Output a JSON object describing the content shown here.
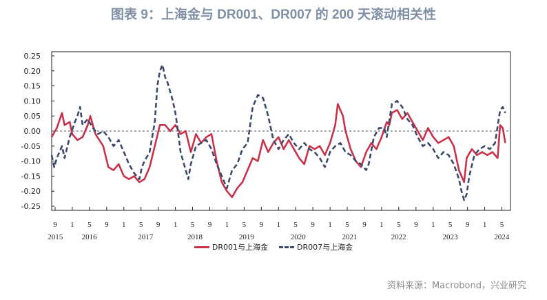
{
  "title": "图表 9：上海金与 DR001、DR007 的 200 天滚动相关性",
  "source": "资料来源：Macrobond，兴业研究",
  "colors": {
    "series1": "#c8334a",
    "series2": "#3b4a6b",
    "zero_line": "#555555"
  },
  "chart_data": {
    "type": "line",
    "ylim": [
      -0.25,
      0.25
    ],
    "yticks": [
      "0.25",
      "0.20",
      "0.15",
      "0.10",
      "0.05",
      "0.00",
      "-0.05",
      "-0.10",
      "-0.15",
      "-0.20",
      "-0.25"
    ],
    "xlim": [
      2015.6,
      2024.5
    ],
    "month_ticks": [
      {
        "t": 2015.667,
        "label": "9"
      },
      {
        "t": 2016.0,
        "label": "1"
      },
      {
        "t": 2016.333,
        "label": "5"
      },
      {
        "t": 2016.667,
        "label": "9"
      },
      {
        "t": 2017.0,
        "label": "1"
      },
      {
        "t": 2017.333,
        "label": "5"
      },
      {
        "t": 2017.667,
        "label": "9"
      },
      {
        "t": 2018.0,
        "label": "1"
      },
      {
        "t": 2018.333,
        "label": "5"
      },
      {
        "t": 2018.667,
        "label": "9"
      },
      {
        "t": 2019.0,
        "label": "1"
      },
      {
        "t": 2019.333,
        "label": "5"
      },
      {
        "t": 2019.667,
        "label": "9"
      },
      {
        "t": 2020.0,
        "label": "1"
      },
      {
        "t": 2020.333,
        "label": "5"
      },
      {
        "t": 2020.667,
        "label": "9"
      },
      {
        "t": 2021.0,
        "label": "1"
      },
      {
        "t": 2021.333,
        "label": "5"
      },
      {
        "t": 2021.667,
        "label": "9"
      },
      {
        "t": 2022.0,
        "label": "1"
      },
      {
        "t": 2022.333,
        "label": "5"
      },
      {
        "t": 2022.667,
        "label": "9"
      },
      {
        "t": 2023.0,
        "label": "1"
      },
      {
        "t": 2023.333,
        "label": "5"
      },
      {
        "t": 2023.667,
        "label": "9"
      },
      {
        "t": 2024.0,
        "label": "1"
      },
      {
        "t": 2024.333,
        "label": "5"
      }
    ],
    "year_labels": [
      {
        "t": 2015.67,
        "label": "2015"
      },
      {
        "t": 2016.33,
        "label": "2016"
      },
      {
        "t": 2017.42,
        "label": "2017"
      },
      {
        "t": 2018.38,
        "label": "2018"
      },
      {
        "t": 2019.38,
        "label": "2019"
      },
      {
        "t": 2020.38,
        "label": "2020"
      },
      {
        "t": 2021.38,
        "label": "2021"
      },
      {
        "t": 2022.33,
        "label": "2022"
      },
      {
        "t": 2023.33,
        "label": "2023"
      },
      {
        "t": 2024.33,
        "label": "2024"
      }
    ],
    "series": [
      {
        "name": "DR001与上海金",
        "style": "solid",
        "points": [
          [
            2015.6,
            -0.02
          ],
          [
            2015.7,
            0.01
          ],
          [
            2015.8,
            0.06
          ],
          [
            2015.85,
            0.02
          ],
          [
            2015.95,
            0.03
          ],
          [
            2016.0,
            -0.01
          ],
          [
            2016.1,
            -0.03
          ],
          [
            2016.2,
            -0.02
          ],
          [
            2016.3,
            0.02
          ],
          [
            2016.35,
            0.05
          ],
          [
            2016.45,
            -0.01
          ],
          [
            2016.6,
            -0.05
          ],
          [
            2016.7,
            -0.12
          ],
          [
            2016.8,
            -0.13
          ],
          [
            2016.9,
            -0.11
          ],
          [
            2017.0,
            -0.15
          ],
          [
            2017.1,
            -0.16
          ],
          [
            2017.2,
            -0.15
          ],
          [
            2017.3,
            -0.17
          ],
          [
            2017.4,
            -0.16
          ],
          [
            2017.5,
            -0.12
          ],
          [
            2017.6,
            -0.05
          ],
          [
            2017.7,
            0.02
          ],
          [
            2017.8,
            0.02
          ],
          [
            2017.9,
            0.0
          ],
          [
            2018.0,
            0.02
          ],
          [
            2018.1,
            -0.01
          ],
          [
            2018.2,
            0.0
          ],
          [
            2018.3,
            -0.07
          ],
          [
            2018.4,
            -0.01
          ],
          [
            2018.5,
            -0.04
          ],
          [
            2018.6,
            -0.02
          ],
          [
            2018.7,
            -0.01
          ],
          [
            2018.8,
            -0.1
          ],
          [
            2018.9,
            -0.17
          ],
          [
            2019.0,
            -0.2
          ],
          [
            2019.1,
            -0.22
          ],
          [
            2019.2,
            -0.19
          ],
          [
            2019.3,
            -0.17
          ],
          [
            2019.4,
            -0.13
          ],
          [
            2019.5,
            -0.09
          ],
          [
            2019.6,
            -0.1
          ],
          [
            2019.7,
            -0.03
          ],
          [
            2019.8,
            -0.07
          ],
          [
            2019.9,
            -0.04
          ],
          [
            2020.0,
            -0.02
          ],
          [
            2020.1,
            -0.06
          ],
          [
            2020.2,
            -0.03
          ],
          [
            2020.3,
            -0.06
          ],
          [
            2020.4,
            -0.09
          ],
          [
            2020.5,
            -0.11
          ],
          [
            2020.6,
            -0.05
          ],
          [
            2020.7,
            -0.06
          ],
          [
            2020.8,
            -0.05
          ],
          [
            2020.9,
            -0.08
          ],
          [
            2021.0,
            -0.04
          ],
          [
            2021.1,
            0.02
          ],
          [
            2021.15,
            0.09
          ],
          [
            2021.25,
            0.05
          ],
          [
            2021.3,
            0.0
          ],
          [
            2021.4,
            -0.06
          ],
          [
            2021.5,
            -0.1
          ],
          [
            2021.6,
            -0.12
          ],
          [
            2021.7,
            -0.07
          ],
          [
            2021.8,
            -0.04
          ],
          [
            2021.9,
            -0.06
          ],
          [
            2022.0,
            -0.02
          ],
          [
            2022.1,
            0.03
          ],
          [
            2022.15,
            0.02
          ],
          [
            2022.2,
            0.06
          ],
          [
            2022.3,
            0.07
          ],
          [
            2022.4,
            0.04
          ],
          [
            2022.5,
            0.06
          ],
          [
            2022.6,
            0.03
          ],
          [
            2022.7,
            0.0
          ],
          [
            2022.8,
            -0.03
          ],
          [
            2022.9,
            0.01
          ],
          [
            2023.0,
            -0.02
          ],
          [
            2023.1,
            -0.04
          ],
          [
            2023.2,
            -0.03
          ],
          [
            2023.3,
            -0.02
          ],
          [
            2023.4,
            -0.05
          ],
          [
            2023.5,
            -0.13
          ],
          [
            2023.6,
            -0.17
          ],
          [
            2023.65,
            -0.09
          ],
          [
            2023.75,
            -0.06
          ],
          [
            2023.85,
            -0.08
          ],
          [
            2023.95,
            -0.07
          ],
          [
            2024.05,
            -0.08
          ],
          [
            2024.15,
            -0.07
          ],
          [
            2024.25,
            -0.09
          ],
          [
            2024.3,
            0.02
          ],
          [
            2024.35,
            0.01
          ],
          [
            2024.4,
            -0.04
          ]
        ]
      },
      {
        "name": "DR007与上海金",
        "style": "dashed",
        "points": [
          [
            2015.6,
            -0.08
          ],
          [
            2015.65,
            -0.12
          ],
          [
            2015.7,
            -0.09
          ],
          [
            2015.8,
            -0.05
          ],
          [
            2015.85,
            -0.09
          ],
          [
            2015.95,
            -0.02
          ],
          [
            2016.05,
            0.03
          ],
          [
            2016.1,
            0.05
          ],
          [
            2016.15,
            0.08
          ],
          [
            2016.2,
            0.02
          ],
          [
            2016.3,
            0.04
          ],
          [
            2016.4,
            0.01
          ],
          [
            2016.5,
            -0.01
          ],
          [
            2016.6,
            0.0
          ],
          [
            2016.7,
            -0.02
          ],
          [
            2016.8,
            -0.05
          ],
          [
            2016.9,
            -0.03
          ],
          [
            2017.0,
            -0.07
          ],
          [
            2017.1,
            -0.11
          ],
          [
            2017.2,
            -0.14
          ],
          [
            2017.3,
            -0.16
          ],
          [
            2017.35,
            -0.12
          ],
          [
            2017.4,
            -0.1
          ],
          [
            2017.5,
            -0.07
          ],
          [
            2017.6,
            0.03
          ],
          [
            2017.65,
            0.15
          ],
          [
            2017.7,
            0.2
          ],
          [
            2017.75,
            0.22
          ],
          [
            2017.8,
            0.18
          ],
          [
            2017.85,
            0.16
          ],
          [
            2017.9,
            0.13
          ],
          [
            2017.95,
            0.1
          ],
          [
            2018.0,
            0.06
          ],
          [
            2018.05,
            0.0
          ],
          [
            2018.1,
            -0.07
          ],
          [
            2018.15,
            -0.1
          ],
          [
            2018.2,
            -0.13
          ],
          [
            2018.25,
            -0.16
          ],
          [
            2018.3,
            -0.11
          ],
          [
            2018.4,
            -0.05
          ],
          [
            2018.5,
            -0.04
          ],
          [
            2018.6,
            -0.03
          ],
          [
            2018.7,
            -0.06
          ],
          [
            2018.8,
            -0.11
          ],
          [
            2018.9,
            -0.15
          ],
          [
            2019.0,
            -0.19
          ],
          [
            2019.1,
            -0.13
          ],
          [
            2019.2,
            -0.11
          ],
          [
            2019.3,
            -0.06
          ],
          [
            2019.4,
            -0.04
          ],
          [
            2019.5,
            0.08
          ],
          [
            2019.6,
            0.12
          ],
          [
            2019.7,
            0.11
          ],
          [
            2019.8,
            0.05
          ],
          [
            2019.9,
            -0.03
          ],
          [
            2020.0,
            -0.06
          ],
          [
            2020.1,
            -0.03
          ],
          [
            2020.2,
            -0.01
          ],
          [
            2020.3,
            -0.04
          ],
          [
            2020.4,
            -0.06
          ],
          [
            2020.5,
            -0.04
          ],
          [
            2020.6,
            -0.06
          ],
          [
            2020.7,
            -0.07
          ],
          [
            2020.8,
            -0.09
          ],
          [
            2020.9,
            -0.12
          ],
          [
            2021.0,
            -0.07
          ],
          [
            2021.1,
            -0.05
          ],
          [
            2021.2,
            -0.04
          ],
          [
            2021.3,
            -0.07
          ],
          [
            2021.4,
            -0.08
          ],
          [
            2021.5,
            -0.1
          ],
          [
            2021.6,
            -0.11
          ],
          [
            2021.7,
            -0.13
          ],
          [
            2021.75,
            -0.11
          ],
          [
            2021.85,
            -0.02
          ],
          [
            2021.95,
            0.01
          ],
          [
            2022.05,
            0.01
          ],
          [
            2022.1,
            -0.02
          ],
          [
            2022.2,
            0.09
          ],
          [
            2022.3,
            0.1
          ],
          [
            2022.4,
            0.08
          ],
          [
            2022.5,
            0.04
          ],
          [
            2022.6,
            0.02
          ],
          [
            2022.7,
            -0.02
          ],
          [
            2022.8,
            -0.05
          ],
          [
            2022.9,
            -0.04
          ],
          [
            2023.0,
            -0.06
          ],
          [
            2023.1,
            -0.09
          ],
          [
            2023.2,
            -0.07
          ],
          [
            2023.3,
            -0.08
          ],
          [
            2023.4,
            -0.11
          ],
          [
            2023.5,
            -0.16
          ],
          [
            2023.55,
            -0.2
          ],
          [
            2023.6,
            -0.23
          ],
          [
            2023.65,
            -0.21
          ],
          [
            2023.7,
            -0.15
          ],
          [
            2023.8,
            -0.08
          ],
          [
            2023.9,
            -0.06
          ],
          [
            2024.0,
            -0.05
          ],
          [
            2024.1,
            -0.06
          ],
          [
            2024.2,
            -0.04
          ],
          [
            2024.3,
            0.07
          ],
          [
            2024.35,
            0.08
          ],
          [
            2024.4,
            0.06
          ]
        ]
      }
    ]
  }
}
